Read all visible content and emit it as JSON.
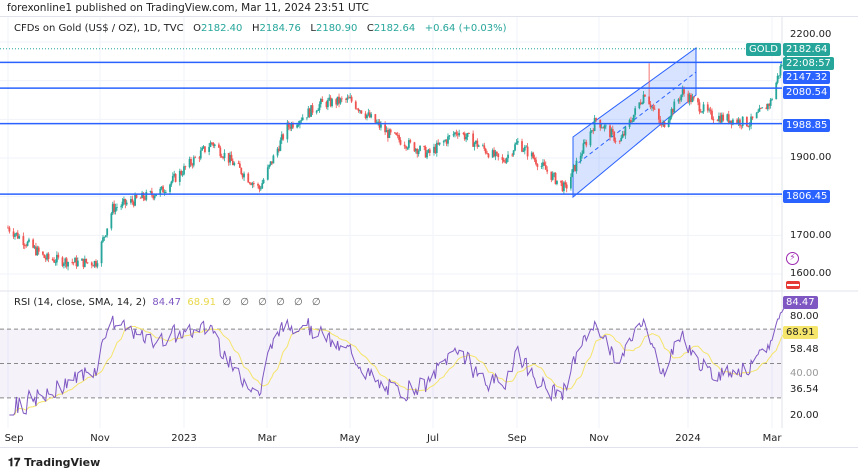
{
  "publish_line": "forexonline1 published on TradingView.com, Mar 11, 2024 23:51 UTC",
  "legend": {
    "symbol": "CFDs on Gold (US$ / OZ), 1D, TVC",
    "o_label": "O",
    "o": "2182.40",
    "h_label": "H",
    "h": "2184.76",
    "l_label": "L",
    "l": "2180.90",
    "c_label": "C",
    "c": "2182.64",
    "change": "+0.64 (+0.03%)"
  },
  "rsi_legend": {
    "title": "RSI (14, close, SMA, 14, 2)",
    "rsi": "84.47",
    "sma": "68.91",
    "hidden": "∅ ∅ ∅ ∅ ∅ ∅"
  },
  "price_tags": {
    "symbol": "GOLD",
    "last": "2182.64",
    "countdown": "22:08:57",
    "levels": [
      "2147.32",
      "2080.54",
      "1988.85",
      "1806.45"
    ]
  },
  "price_axis": [
    "2200.00",
    "1900.00",
    "1700.00",
    "1600.00"
  ],
  "rsi_axis": {
    "labels": [
      "80.00",
      "58.48",
      "40.00",
      "36.54",
      "20.00"
    ],
    "rsi_tag": "84.47",
    "sma_tag": "68.91"
  },
  "colors": {
    "up": "#26a69a",
    "down": "#ef5350",
    "levels": "#2962ff",
    "rsi": "#7e57c2",
    "rsi_sma": "#f5e56b",
    "channel": "#2962ff"
  },
  "x_axis": [
    "Sep",
    "Nov",
    "2023",
    "Mar",
    "May",
    "Jul",
    "Sep",
    "Nov",
    "2024",
    "Mar"
  ],
  "brand": "TradingView",
  "chart_data": {
    "type": "candlestick",
    "title": "CFDs on Gold (US$ / OZ), 1D, TVC",
    "x_ticks": [
      "Sep",
      "Nov",
      "2023",
      "Mar",
      "May",
      "Jul",
      "Sep",
      "Nov",
      "2024",
      "Mar"
    ],
    "ylim": [
      1580,
      2220
    ],
    "approx_close_path": [
      {
        "date": "2022-09-01",
        "close": 1720
      },
      {
        "date": "2022-09-28",
        "close": 1640
      },
      {
        "date": "2022-10-20",
        "close": 1630
      },
      {
        "date": "2022-11-03",
        "close": 1630
      },
      {
        "date": "2022-11-15",
        "close": 1770
      },
      {
        "date": "2022-12-20",
        "close": 1815
      },
      {
        "date": "2023-01-25",
        "close": 1940
      },
      {
        "date": "2023-02-28",
        "close": 1820
      },
      {
        "date": "2023-03-20",
        "close": 1980
      },
      {
        "date": "2023-04-13",
        "close": 2040
      },
      {
        "date": "2023-05-04",
        "close": 2050
      },
      {
        "date": "2023-06-01",
        "close": 1960
      },
      {
        "date": "2023-06-29",
        "close": 1910
      },
      {
        "date": "2023-07-20",
        "close": 1970
      },
      {
        "date": "2023-08-21",
        "close": 1890
      },
      {
        "date": "2023-09-01",
        "close": 1940
      },
      {
        "date": "2023-10-05",
        "close": 1820
      },
      {
        "date": "2023-10-27",
        "close": 2000
      },
      {
        "date": "2023-11-13",
        "close": 1940
      },
      {
        "date": "2023-12-01",
        "close": 2070
      },
      {
        "date": "2023-12-13",
        "close": 1980
      },
      {
        "date": "2023-12-28",
        "close": 2070
      },
      {
        "date": "2024-01-17",
        "close": 2010
      },
      {
        "date": "2024-02-14",
        "close": 1990
      },
      {
        "date": "2024-02-29",
        "close": 2045
      },
      {
        "date": "2024-03-11",
        "close": 2182.64
      }
    ],
    "spike_high": {
      "date": "2023-12-04",
      "high": 2145
    },
    "horizontal_levels": [
      2147.32,
      2080.54,
      1988.85,
      1806.45
    ],
    "rsi": {
      "length": 14,
      "last": 84.47,
      "sma_last": 68.91,
      "bands": [
        70,
        50,
        30
      ],
      "ylim": [
        20,
        80
      ]
    }
  }
}
